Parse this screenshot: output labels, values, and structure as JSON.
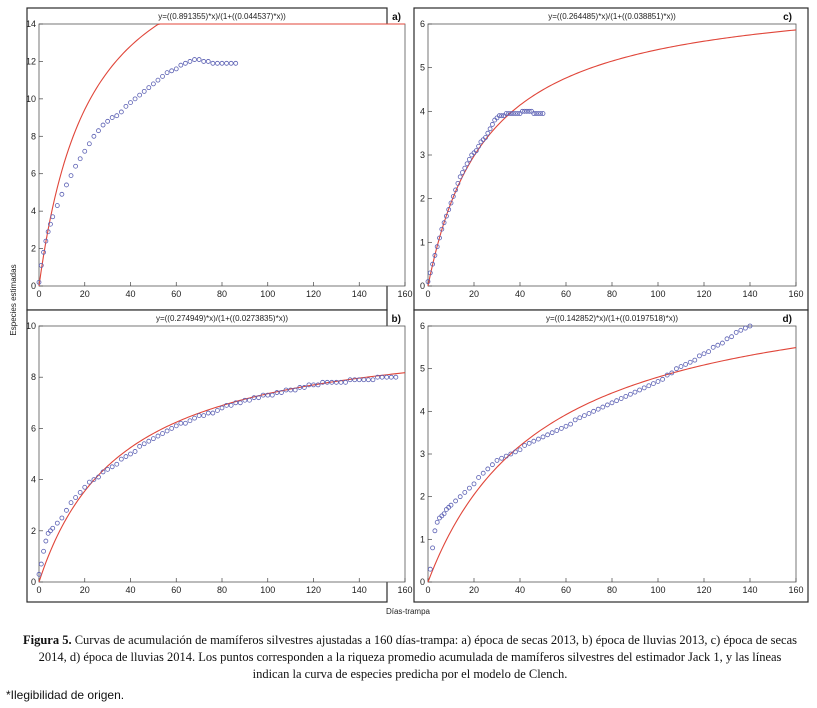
{
  "figure": {
    "ylabel": "Especies estimadas",
    "xlabel": "Días-trampa",
    "caption_title": "Figura 5.",
    "caption_text": "Curvas de acumulación de mamíferos silvestres ajustadas a 160 días-trampa: a) época de secas 2013, b) época de lluvias 2013, c) época de secas 2014, d)  época de lluvias 2014. Los puntos corresponden a la riqueza promedio acumulada de mamíferos silvestres del estimador Jack 1, y las líneas indican la curva de especies predicha por el modelo de Clench.",
    "note": "*Ilegibilidad de origen."
  },
  "colors": {
    "curve": "#e0463a",
    "points": "#5a5fb3"
  },
  "chart_data": [
    {
      "id": "a",
      "type": "scatter",
      "letter": "a)",
      "title": "y=((0.891355)*x)/(1+((0.044537)*x))",
      "xlim": [
        0,
        160
      ],
      "ylim": [
        0,
        14
      ],
      "xticks": [
        "0",
        "20",
        "40",
        "60",
        "80",
        "100",
        "120",
        "140",
        "160"
      ],
      "yticks": [
        "0",
        "2",
        "4",
        "6",
        "8",
        "10",
        "12",
        "14"
      ],
      "model": {
        "a": 0.891355,
        "b": 0.044537
      },
      "points_x": [
        0,
        1,
        2,
        3,
        4,
        5,
        6,
        8,
        10,
        12,
        14,
        16,
        18,
        20,
        22,
        24,
        26,
        28,
        30,
        32,
        34,
        36,
        38,
        40,
        42,
        44,
        46,
        48,
        50,
        52,
        54,
        56,
        58,
        60,
        62,
        64,
        66,
        68,
        70,
        72,
        74,
        76,
        78,
        80,
        82,
        84,
        86
      ],
      "points_y": [
        0.2,
        1.1,
        1.8,
        2.4,
        2.9,
        3.3,
        3.7,
        4.3,
        4.9,
        5.4,
        5.9,
        6.4,
        6.8,
        7.2,
        7.6,
        8.0,
        8.3,
        8.6,
        8.8,
        9.0,
        9.1,
        9.3,
        9.6,
        9.8,
        10.0,
        10.2,
        10.4,
        10.6,
        10.8,
        11.0,
        11.2,
        11.4,
        11.5,
        11.6,
        11.8,
        11.9,
        12.0,
        12.1,
        12.1,
        12.0,
        12.0,
        11.9,
        11.9,
        11.9,
        11.9,
        11.9,
        11.9
      ]
    },
    {
      "id": "c",
      "type": "scatter",
      "letter": "c)",
      "title": "y=((0.264485)*x)/(1+((0.038851)*x))",
      "xlim": [
        0,
        160
      ],
      "ylim": [
        0,
        6
      ],
      "xticks": [
        "0",
        "20",
        "40",
        "60",
        "80",
        "100",
        "120",
        "140",
        "160"
      ],
      "yticks": [
        "0",
        "1",
        "2",
        "3",
        "4",
        "5",
        "6"
      ],
      "model": {
        "a": 0.264485,
        "b": 0.038851
      },
      "points_x": [
        0,
        1,
        2,
        3,
        4,
        5,
        6,
        7,
        8,
        9,
        10,
        11,
        12,
        13,
        14,
        15,
        16,
        17,
        18,
        19,
        20,
        21,
        22,
        23,
        24,
        25,
        26,
        27,
        28,
        29,
        30,
        31,
        32,
        33,
        34,
        35,
        36,
        37,
        38,
        39,
        40,
        41,
        42,
        43,
        44,
        45,
        46,
        47,
        48,
        49,
        50
      ],
      "points_y": [
        0.1,
        0.3,
        0.5,
        0.7,
        0.9,
        1.1,
        1.3,
        1.45,
        1.6,
        1.75,
        1.9,
        2.05,
        2.2,
        2.35,
        2.5,
        2.6,
        2.7,
        2.8,
        2.9,
        3.0,
        3.05,
        3.1,
        3.2,
        3.3,
        3.35,
        3.4,
        3.5,
        3.6,
        3.7,
        3.8,
        3.85,
        3.9,
        3.9,
        3.9,
        3.95,
        3.95,
        3.95,
        3.95,
        3.95,
        3.95,
        3.95,
        4.0,
        4.0,
        4.0,
        4.0,
        4.0,
        3.95,
        3.95,
        3.95,
        3.95,
        3.95
      ]
    },
    {
      "id": "b",
      "type": "scatter",
      "letter": "b)",
      "title": "y=((0.274949)*x)/(1+((0.0273835)*x))",
      "xlim": [
        0,
        160
      ],
      "ylim": [
        0,
        10
      ],
      "xticks": [
        "0",
        "20",
        "40",
        "60",
        "80",
        "100",
        "120",
        "140",
        "160"
      ],
      "yticks": [
        "0",
        "2",
        "4",
        "6",
        "8",
        "10"
      ],
      "model": {
        "a": 0.274949,
        "b": 0.0273835
      },
      "points_x": [
        0,
        1,
        2,
        3,
        4,
        5,
        6,
        8,
        10,
        12,
        14,
        16,
        18,
        20,
        22,
        24,
        26,
        28,
        30,
        32,
        34,
        36,
        38,
        40,
        42,
        44,
        46,
        48,
        50,
        52,
        54,
        56,
        58,
        60,
        62,
        64,
        66,
        68,
        70,
        72,
        74,
        76,
        78,
        80,
        82,
        84,
        86,
        88,
        90,
        92,
        94,
        96,
        98,
        100,
        102,
        104,
        106,
        108,
        110,
        112,
        114,
        116,
        118,
        120,
        122,
        124,
        126,
        128,
        130,
        132,
        134,
        136,
        138,
        140,
        142,
        144,
        146,
        148,
        150,
        152,
        154,
        156
      ],
      "points_y": [
        0.3,
        0.7,
        1.2,
        1.6,
        1.9,
        2.0,
        2.1,
        2.3,
        2.5,
        2.8,
        3.1,
        3.3,
        3.5,
        3.7,
        3.9,
        4.0,
        4.1,
        4.3,
        4.4,
        4.5,
        4.6,
        4.8,
        4.9,
        5.0,
        5.1,
        5.3,
        5.4,
        5.5,
        5.6,
        5.7,
        5.8,
        5.9,
        6.0,
        6.1,
        6.2,
        6.2,
        6.3,
        6.4,
        6.5,
        6.5,
        6.6,
        6.6,
        6.7,
        6.8,
        6.9,
        6.9,
        7.0,
        7.0,
        7.1,
        7.1,
        7.2,
        7.2,
        7.3,
        7.3,
        7.3,
        7.4,
        7.4,
        7.5,
        7.5,
        7.5,
        7.6,
        7.6,
        7.7,
        7.7,
        7.7,
        7.8,
        7.8,
        7.8,
        7.8,
        7.8,
        7.8,
        7.9,
        7.9,
        7.9,
        7.9,
        7.9,
        7.9,
        8.0,
        8.0,
        8.0,
        8.0,
        8.0
      ]
    },
    {
      "id": "d",
      "type": "scatter",
      "letter": "d)",
      "title": "y=((0.142852)*x)/(1+((0.0197518)*x))",
      "xlim": [
        0,
        160
      ],
      "ylim": [
        0,
        6
      ],
      "xticks": [
        "0",
        "20",
        "40",
        "60",
        "80",
        "100",
        "120",
        "140",
        "160"
      ],
      "yticks": [
        "0",
        "1",
        "2",
        "3",
        "4",
        "5",
        "6"
      ],
      "model": {
        "a": 0.142852,
        "b": 0.0197518
      },
      "points_x": [
        1,
        2,
        3,
        4,
        5,
        6,
        7,
        8,
        9,
        10,
        12,
        14,
        16,
        18,
        20,
        22,
        24,
        26,
        28,
        30,
        32,
        34,
        36,
        38,
        40,
        42,
        44,
        46,
        48,
        50,
        52,
        54,
        56,
        58,
        60,
        62,
        64,
        66,
        68,
        70,
        72,
        74,
        76,
        78,
        80,
        82,
        84,
        86,
        88,
        90,
        92,
        94,
        96,
        98,
        100,
        102,
        104,
        106,
        108,
        110,
        112,
        114,
        116,
        118,
        120,
        122,
        124,
        126,
        128,
        130,
        132,
        134,
        136,
        138,
        140
      ],
      "points_y": [
        0.3,
        0.8,
        1.2,
        1.4,
        1.5,
        1.55,
        1.6,
        1.7,
        1.75,
        1.8,
        1.9,
        2.0,
        2.1,
        2.2,
        2.3,
        2.45,
        2.55,
        2.65,
        2.75,
        2.85,
        2.9,
        2.95,
        3.0,
        3.05,
        3.1,
        3.2,
        3.25,
        3.3,
        3.35,
        3.4,
        3.45,
        3.5,
        3.55,
        3.6,
        3.65,
        3.7,
        3.8,
        3.85,
        3.9,
        3.95,
        4.0,
        4.05,
        4.1,
        4.15,
        4.2,
        4.25,
        4.3,
        4.35,
        4.4,
        4.45,
        4.5,
        4.55,
        4.6,
        4.65,
        4.7,
        4.75,
        4.85,
        4.9,
        5.0,
        5.05,
        5.1,
        5.15,
        5.2,
        5.3,
        5.35,
        5.4,
        5.5,
        5.55,
        5.6,
        5.7,
        5.75,
        5.85,
        5.9,
        5.95,
        6.0
      ]
    }
  ]
}
